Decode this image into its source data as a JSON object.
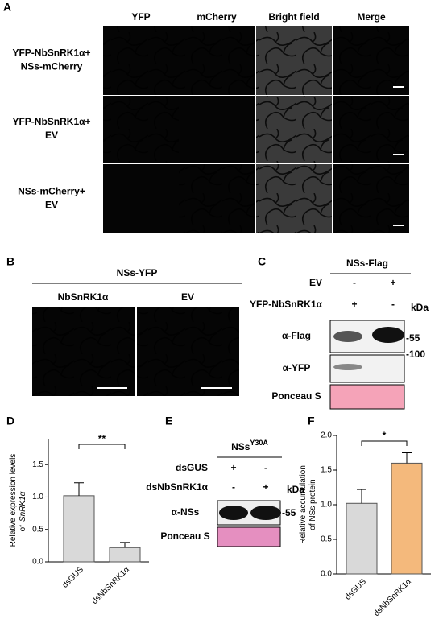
{
  "panel_a": {
    "label": "A",
    "columns": [
      "YFP",
      "mCherry",
      "Bright field",
      "Merge"
    ],
    "rows": [
      [
        "YFP-NbSnRK1α+",
        "NSs-mCherry"
      ],
      [
        "YFP-NbSnRK1α+",
        "EV"
      ],
      [
        "NSs-mCherry+",
        "EV"
      ]
    ]
  },
  "panel_b": {
    "label": "B",
    "header": "NSs-YFP",
    "columns": [
      "NbSnRK1α",
      "EV"
    ]
  },
  "panel_c": {
    "label": "C",
    "header": "NSs-Flag",
    "lanes": [
      {
        "name": "EV",
        "signs": [
          "-",
          "+"
        ]
      },
      {
        "name": "YFP-NbSnRK1α",
        "signs": [
          "+",
          "-"
        ]
      }
    ],
    "unit": "kDa",
    "blots": [
      "α-Flag",
      "α-YFP",
      "Ponceau S"
    ],
    "markers": [
      "-55",
      "-100"
    ]
  },
  "panel_e": {
    "label": "E",
    "header": "NSs",
    "header_sup": "Y30A",
    "lanes": [
      {
        "name": "dsGUS",
        "signs": [
          "+",
          "-"
        ]
      },
      {
        "name": "dsNbSnRK1α",
        "signs": [
          "-",
          "+"
        ]
      }
    ],
    "unit": "kDa",
    "blots": [
      "α-NSs",
      "Ponceau S"
    ],
    "markers": [
      "-55"
    ]
  },
  "chart_data": [
    {
      "type": "bar",
      "label": "D",
      "y_label": [
        "Relative expression levels",
        "of",
        "SnRK1α"
      ],
      "categories": [
        "dsGUS",
        "dsNbSnRK1α"
      ],
      "values": [
        1.02,
        0.22
      ],
      "errors": [
        0.2,
        0.08
      ],
      "colors": [
        "#d9d9d9",
        "#d9d9d9"
      ],
      "ylim": [
        0,
        1.9
      ],
      "yticks": [
        {
          "value": 0,
          "label": "0.0"
        },
        {
          "value": 0.5,
          "label": "0.5"
        },
        {
          "value": 1,
          "label": "1.0"
        },
        {
          "value": 1.5,
          "label": "1.5"
        }
      ],
      "significance": "**"
    },
    {
      "type": "bar",
      "label": "F",
      "y_label": [
        "Relative accumulation",
        "of NSs protein"
      ],
      "categories": [
        "dsGUS",
        "dsNbSnRK1α"
      ],
      "values": [
        1.02,
        1.6
      ],
      "errors": [
        0.2,
        0.15
      ],
      "colors": [
        "#d9d9d9",
        "#f4b97c"
      ],
      "ylim": [
        0,
        2.0
      ],
      "yticks": [
        {
          "value": 0,
          "label": "0.0"
        },
        {
          "value": 0.5,
          "label": "0.5"
        },
        {
          "value": 1,
          "label": "1.0"
        },
        {
          "value": 1.5,
          "label": "1.5"
        },
        {
          "value": 2,
          "label": "2.0"
        }
      ],
      "significance": "*"
    }
  ]
}
